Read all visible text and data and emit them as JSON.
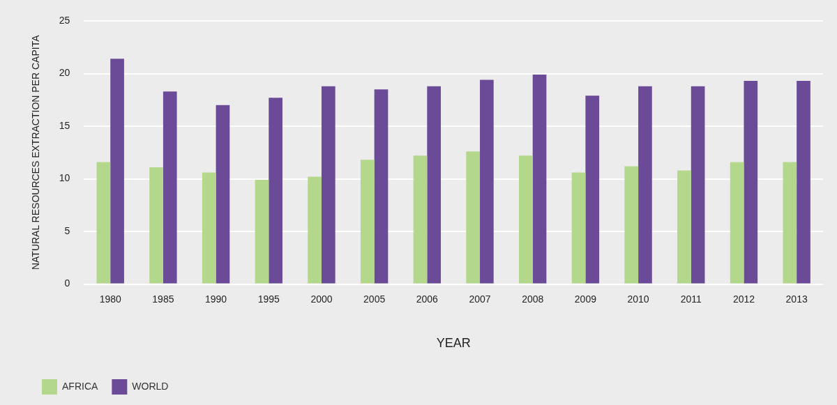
{
  "chart_data": {
    "type": "bar",
    "xlabel": "YEAR",
    "ylabel": "NATURAL RESOURCES EXTRACTION PER CAPITA",
    "categories": [
      "1980",
      "1985",
      "1990",
      "1995",
      "2000",
      "2005",
      "2006",
      "2007",
      "2008",
      "2009",
      "2010",
      "2011",
      "2012",
      "2013"
    ],
    "series": [
      {
        "name": "AFRICA",
        "color": "#b3d78b",
        "values": [
          11.6,
          11.1,
          10.6,
          9.9,
          10.2,
          11.8,
          12.2,
          12.6,
          12.2,
          10.6,
          11.2,
          10.8,
          11.6,
          11.6
        ]
      },
      {
        "name": "WORLD",
        "color": "#6b4a97",
        "values": [
          21.4,
          18.3,
          17.0,
          17.7,
          18.8,
          18.5,
          18.8,
          19.4,
          19.9,
          17.9,
          18.8,
          18.8,
          19.3,
          19.3
        ]
      }
    ],
    "ylim": [
      0,
      25
    ],
    "yticks": [
      0,
      5,
      10,
      15,
      20,
      25
    ],
    "grid": "y",
    "legend": "bottom left"
  }
}
